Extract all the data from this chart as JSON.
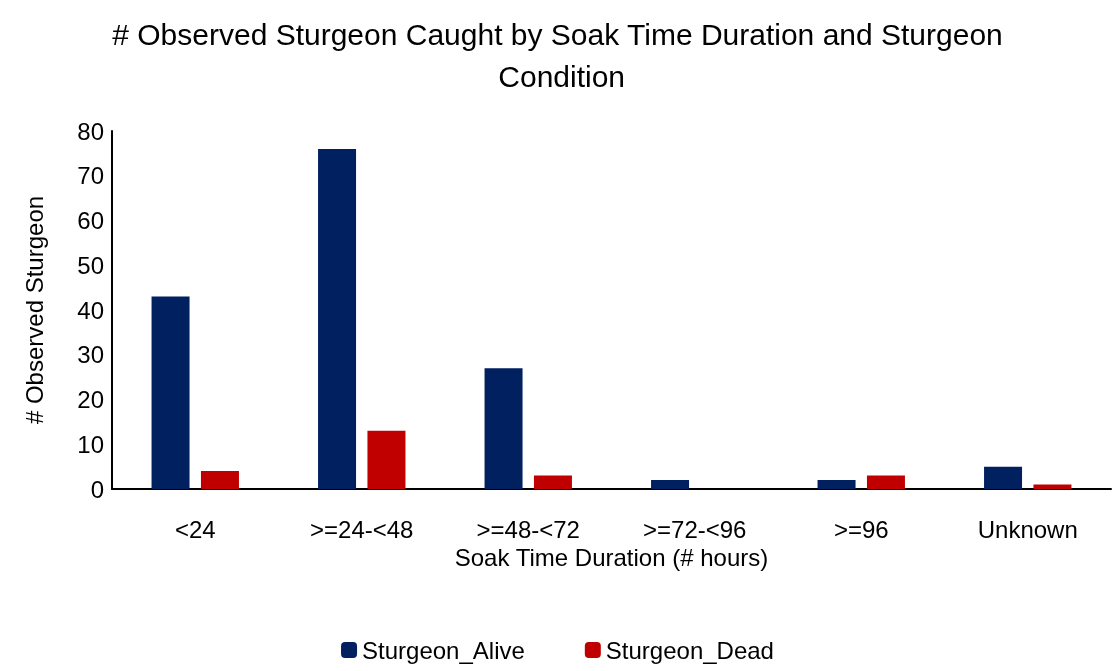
{
  "chart_data": {
    "type": "bar",
    "title": "# Observed Sturgeon Caught by Soak Time Duration and Sturgeon Condition",
    "xlabel": "Soak Time Duration (# hours)",
    "ylabel": "# Observed Sturgeon",
    "categories": [
      "<24",
      ">=24-<48",
      ">=48-<72",
      ">=72-<96",
      ">=96",
      "Unknown"
    ],
    "series": [
      {
        "name": "Sturgeon_Alive",
        "color": "#002060",
        "values": [
          43,
          76,
          27,
          2,
          2,
          5
        ]
      },
      {
        "name": "Sturgeon_Dead",
        "color": "#c00000",
        "values": [
          4,
          13,
          3,
          0,
          3,
          1
        ]
      }
    ],
    "ylim": [
      0,
      80
    ],
    "yticks": [
      0,
      10,
      20,
      30,
      40,
      50,
      60,
      70,
      80
    ],
    "grid": false,
    "legend": "bottom"
  }
}
